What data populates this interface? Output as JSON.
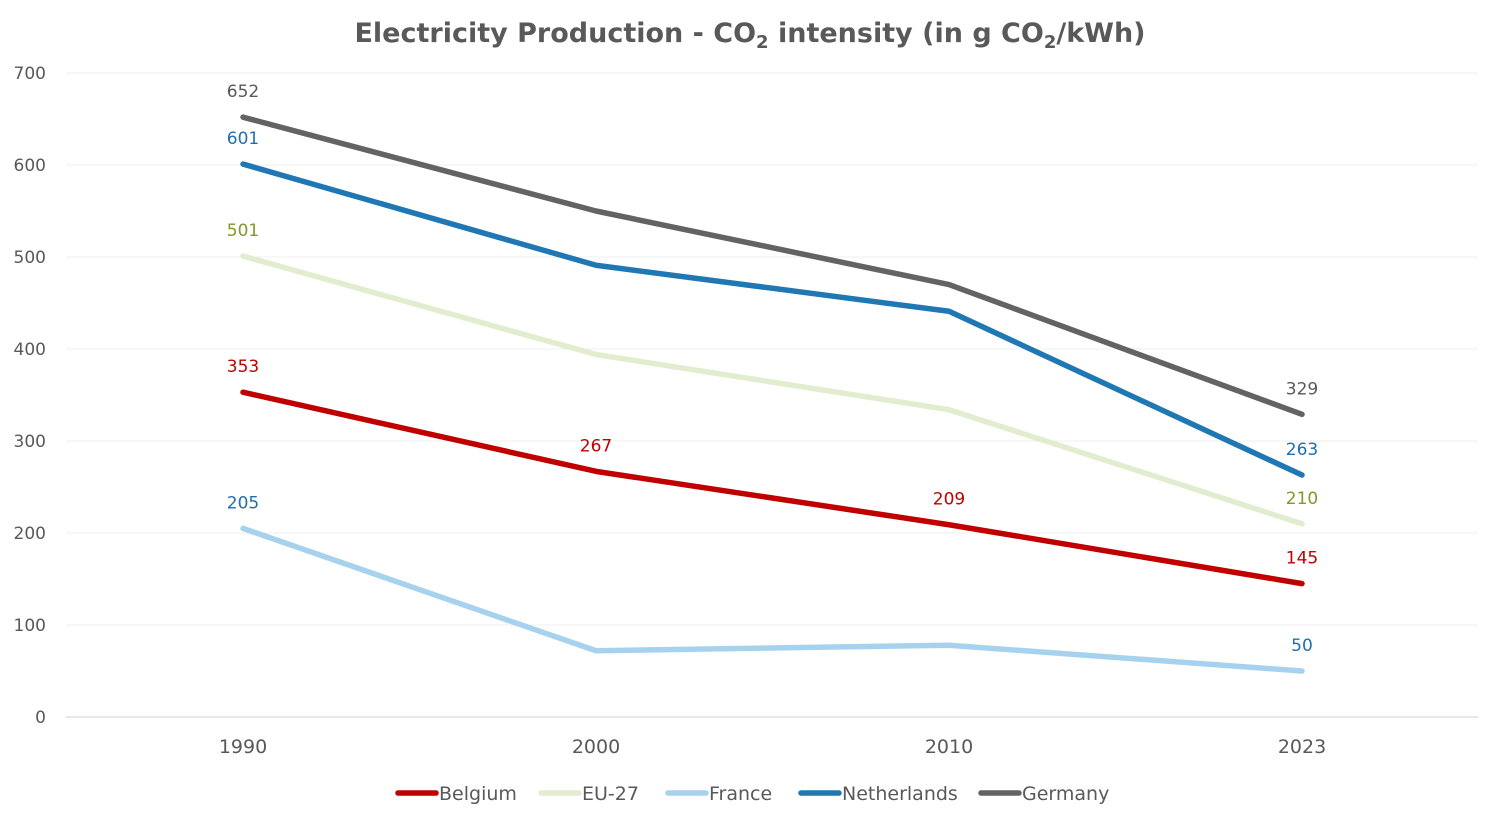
{
  "chart_data": {
    "type": "line",
    "title_parts": [
      "Electricity Production - CO",
      "2",
      " intensity (in g CO",
      "2",
      "/kWh)"
    ],
    "categories": [
      "1990",
      "2000",
      "2010",
      "2023"
    ],
    "ylim": [
      0,
      700
    ],
    "yticks": [
      "0",
      "100",
      "200",
      "300",
      "400",
      "500",
      "600",
      "700"
    ],
    "grid": "horizontal",
    "legend_position": "bottom",
    "series": [
      {
        "name": "Belgium",
        "color": "#c00000",
        "label_color": "#c00000",
        "values": [
          353,
          267,
          209,
          145
        ],
        "labels": [
          "353",
          "267",
          "209",
          "145"
        ]
      },
      {
        "name": "EU-27",
        "color": "#e2ecce",
        "label_color": "#7f9a2a",
        "values": [
          501,
          394,
          334,
          210
        ],
        "labels": [
          "501",
          "",
          "",
          "210"
        ]
      },
      {
        "name": "France",
        "color": "#a6d2ee",
        "label_color": "#1f6fb0",
        "values": [
          205,
          72,
          78,
          50
        ],
        "labels": [
          "205",
          "",
          "",
          "50"
        ]
      },
      {
        "name": "Netherlands",
        "color": "#1f77b4",
        "label_color": "#1f6fb0",
        "values": [
          601,
          491,
          441,
          263
        ],
        "labels": [
          "601",
          "",
          "",
          "263"
        ]
      },
      {
        "name": "Germany",
        "color": "#636363",
        "label_color": "#595959",
        "values": [
          652,
          550,
          470,
          329
        ],
        "labels": [
          "652",
          "",
          "",
          "329"
        ]
      }
    ]
  }
}
